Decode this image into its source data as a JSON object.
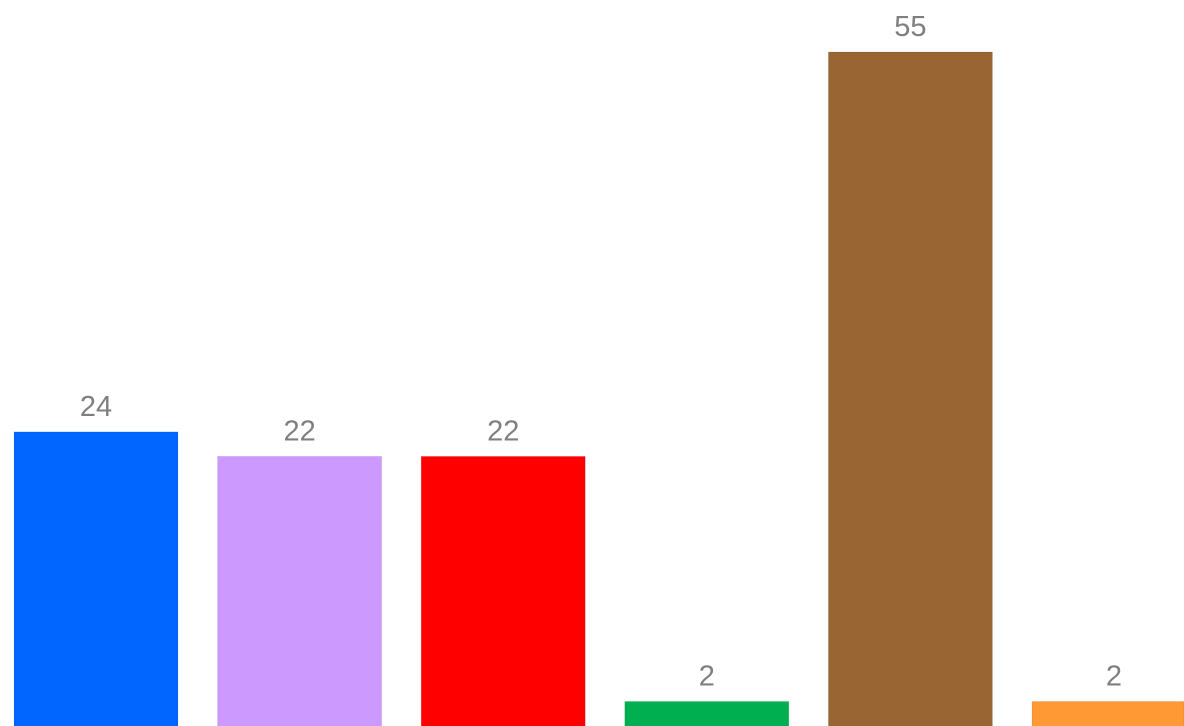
{
  "chart_data": {
    "type": "bar",
    "categories": [
      "",
      "",
      "",
      "",
      "",
      ""
    ],
    "values": [
      24,
      22,
      22,
      2,
      55,
      2
    ],
    "data_labels": [
      "24",
      "22",
      "22",
      "2",
      "55",
      "2"
    ],
    "colors": [
      "#0066ff",
      "#cc99ff",
      "#ff0000",
      "#00b050",
      "#996633",
      "#ff9933"
    ],
    "title": "",
    "xlabel": "",
    "ylabel": "",
    "ylim": [
      0,
      55
    ],
    "grid": false,
    "legend": "none"
  }
}
